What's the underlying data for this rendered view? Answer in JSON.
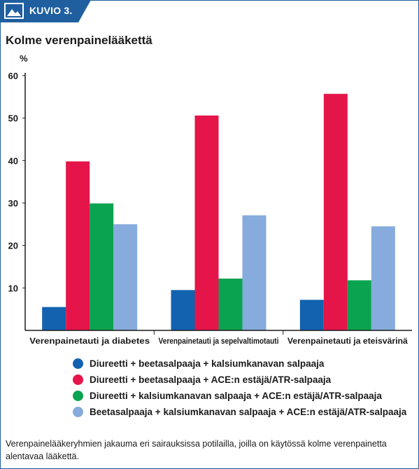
{
  "figure_label": "KUVIO 3.",
  "icon": "image-icon",
  "colors": {
    "frame": "#1f5fa0",
    "series": [
      "#1262b0",
      "#e5154a",
      "#0aa34f",
      "#86abdc"
    ]
  },
  "caption": "Verenpainelääkeryhmien jakauma eri sairauksissa potilailla, joilla on käytössä kolme verenpainetta alentavaa lääkettä.",
  "chart_data": {
    "type": "bar",
    "title": "Kolme verenpainelääkettä",
    "ylabel": "%",
    "xlabel": "",
    "ylim": [
      0,
      60
    ],
    "yticks": [
      10,
      20,
      30,
      40,
      50,
      60
    ],
    "grid": false,
    "legend_position": "bottom",
    "categories": [
      "Verenpainetauti ja diabetes",
      "Verenpainetauti ja sepelvaltimotauti",
      "Verenpainetauti ja eteisvärinä"
    ],
    "series": [
      {
        "name": "Diureetti + beetasalpaaja + kalsiumkanavan salpaaja",
        "values": [
          5.5,
          9.5,
          7.2
        ]
      },
      {
        "name": "Diureetti + beetasalpaaja + ACE:n estäjä/ATR-salpaaja",
        "values": [
          39.8,
          50.6,
          55.7
        ]
      },
      {
        "name": "Diureetti + kalsiumkanavan salpaaja + ACE:n estäjä/ATR-salpaaja",
        "values": [
          29.9,
          12.2,
          11.8
        ]
      },
      {
        "name": "Beetasalpaaja + kalsiumkanavan salpaaja + ACE:n estäjä/ATR-salpaaja",
        "values": [
          25.0,
          27.1,
          24.5
        ]
      }
    ]
  }
}
